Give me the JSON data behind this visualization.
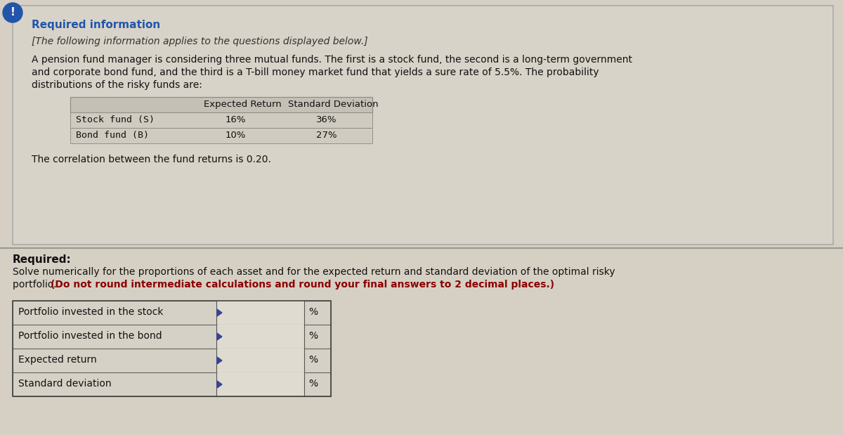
{
  "bg_color": "#d6d0c4",
  "exclamation_circle_color": "#2255aa",
  "section1_title": "Required information",
  "section1_title_color": "#2255aa",
  "section1_subtitle": "[The following information applies to the questions displayed below.]",
  "section1_body_line1": "A pension fund manager is considering three mutual funds. The first is a stock fund, the second is a long-term government",
  "section1_body_line2": "and corporate bond fund, and the third is a T-bill money market fund that yields a sure rate of 5.5%. The probability",
  "section1_body_line3": "distributions of the risky funds are:",
  "table_header_col2": "Expected Return",
  "table_header_col3": "Standard Deviation",
  "table_rows": [
    [
      "Stock fund (S)",
      "16%",
      "36%"
    ],
    [
      "Bond fund (B)",
      "10%",
      "27%"
    ]
  ],
  "correlation_text": "The correlation between the fund returns is 0.20.",
  "section2_title": "Required:",
  "section2_body_line1": "Solve numerically for the proportions of each asset and for the expected return and standard deviation of the optimal risky",
  "section2_body_line2_normal": "portfolio. ",
  "section2_body_line2_bold": "(Do not round intermediate calculations and round your final answers to 2 decimal places.)",
  "answer_rows": [
    "Portfolio invested in the stock",
    "Portfolio invested in the bond",
    "Expected return",
    "Standard deviation"
  ],
  "answer_unit": "%",
  "blue_arrow_color": "#334499",
  "panel_fc": "#d8d3c8",
  "panel_ec": "#aaaaaa",
  "table_header_fc": "#c5c0b5",
  "table_row_fc": "#d0cbc0",
  "table_ec": "#888880",
  "answer_row_fc": "#d6d1c6",
  "answer_input_fc": "#e0dbd0",
  "answer_ec": "#666660",
  "divider_color": "#999990",
  "bold_red_color": "#8b0000"
}
